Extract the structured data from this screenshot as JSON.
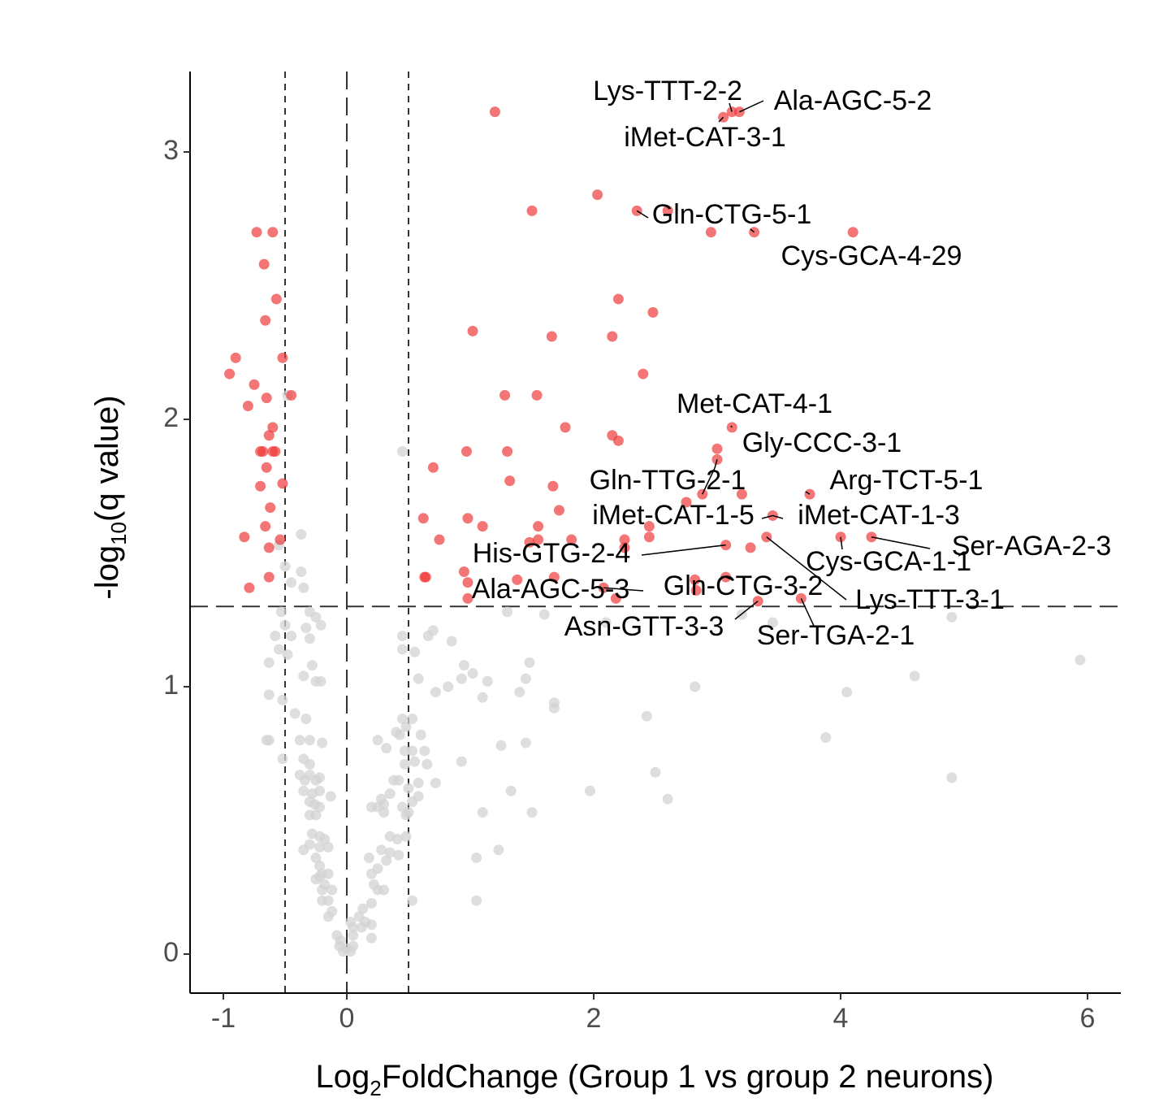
{
  "chart_data": {
    "type": "scatter",
    "title": "",
    "xlabel": {
      "prefix": "Log",
      "sub": "2",
      "suffix": "FoldChange (Group 1 vs group 2 neurons)"
    },
    "ylabel": {
      "prefix": "-log",
      "sub": "10",
      "suffix": "(q value)"
    },
    "xlim": [
      -1.27,
      6.25
    ],
    "ylim": [
      -0.15,
      3.3
    ],
    "x_ticks": [
      {
        "value": -1,
        "label": "-1"
      },
      {
        "value": 0,
        "label": "0"
      },
      {
        "value": 2,
        "label": "2"
      },
      {
        "value": 4,
        "label": "4"
      },
      {
        "value": 6,
        "label": "6"
      }
    ],
    "y_ticks": [
      {
        "value": 0,
        "label": "0"
      },
      {
        "value": 1,
        "label": "1"
      },
      {
        "value": 2,
        "label": "2"
      },
      {
        "value": 3,
        "label": "3"
      }
    ],
    "grid": false,
    "reference_lines": {
      "vertical_dashed": [
        -0.5,
        0.5
      ],
      "vertical_longdash": [
        0
      ],
      "horizontal_longdash": [
        1.3
      ]
    },
    "colors": {
      "significant": "#f03b3b",
      "not_significant": "#d3d3d3",
      "axis": "#000000",
      "refline": "#333333"
    },
    "series": [
      {
        "group": "significant",
        "points": [
          [
            1.2,
            3.15
          ],
          [
            3.05,
            3.13
          ],
          [
            3.12,
            3.15
          ],
          [
            3.18,
            3.15
          ],
          [
            2.03,
            2.84
          ],
          [
            1.5,
            2.78
          ],
          [
            2.35,
            2.78
          ],
          [
            2.6,
            2.78
          ],
          [
            2.95,
            2.7
          ],
          [
            3.3,
            2.7
          ],
          [
            4.1,
            2.7
          ],
          [
            -0.73,
            2.7
          ],
          [
            -0.6,
            2.7
          ],
          [
            -0.67,
            2.58
          ],
          [
            -0.57,
            2.45
          ],
          [
            -0.66,
            2.37
          ],
          [
            2.2,
            2.45
          ],
          [
            2.48,
            2.4
          ],
          [
            1.02,
            2.33
          ],
          [
            1.66,
            2.31
          ],
          [
            2.15,
            2.31
          ],
          [
            -0.9,
            2.23
          ],
          [
            -0.52,
            2.23
          ],
          [
            -0.95,
            2.17
          ],
          [
            -0.75,
            2.13
          ],
          [
            2.4,
            2.17
          ],
          [
            -0.8,
            2.05
          ],
          [
            -0.65,
            2.08
          ],
          [
            1.28,
            2.09
          ],
          [
            1.54,
            2.09
          ],
          [
            -0.45,
            2.09
          ],
          [
            -0.6,
            1.97
          ],
          [
            -0.63,
            1.94
          ],
          [
            1.77,
            1.97
          ],
          [
            2.15,
            1.94
          ],
          [
            2.2,
            1.92
          ],
          [
            3.12,
            1.97
          ],
          [
            3.0,
            1.89
          ],
          [
            -0.7,
            1.88
          ],
          [
            -0.68,
            1.88
          ],
          [
            -0.6,
            1.88
          ],
          [
            -0.58,
            1.88
          ],
          [
            -0.65,
            1.82
          ],
          [
            0.97,
            1.88
          ],
          [
            1.3,
            1.88
          ],
          [
            0.7,
            1.82
          ],
          [
            -0.52,
            1.76
          ],
          [
            -0.7,
            1.75
          ],
          [
            3.0,
            1.85
          ],
          [
            1.32,
            1.77
          ],
          [
            1.67,
            1.75
          ],
          [
            2.88,
            1.72
          ],
          [
            3.2,
            1.72
          ],
          [
            3.75,
            1.72
          ],
          [
            2.75,
            1.69
          ],
          [
            -0.62,
            1.67
          ],
          [
            1.72,
            1.66
          ],
          [
            0.98,
            1.63
          ],
          [
            1.1,
            1.6
          ],
          [
            3.45,
            1.64
          ],
          [
            0.62,
            1.63
          ],
          [
            1.55,
            1.6
          ],
          [
            2.45,
            1.6
          ],
          [
            -0.66,
            1.6
          ],
          [
            -0.83,
            1.56
          ],
          [
            0.75,
            1.55
          ],
          [
            1.55,
            1.55
          ],
          [
            1.48,
            1.54
          ],
          [
            1.82,
            1.55
          ],
          [
            2.25,
            1.55
          ],
          [
            2.45,
            1.56
          ],
          [
            -0.54,
            1.55
          ],
          [
            3.4,
            1.56
          ],
          [
            4.0,
            1.56
          ],
          [
            4.25,
            1.56
          ],
          [
            2.25,
            1.52
          ],
          [
            -0.63,
            1.52
          ],
          [
            3.07,
            1.53
          ],
          [
            3.27,
            1.52
          ],
          [
            0.95,
            1.43
          ],
          [
            0.63,
            1.41
          ],
          [
            0.64,
            1.41
          ],
          [
            1.38,
            1.4
          ],
          [
            1.68,
            1.41
          ],
          [
            -0.63,
            1.41
          ],
          [
            2.82,
            1.4
          ],
          [
            3.07,
            1.41
          ],
          [
            -0.79,
            1.37
          ],
          [
            2.08,
            1.37
          ],
          [
            2.83,
            1.36
          ],
          [
            0.98,
            1.39
          ],
          [
            2.18,
            1.33
          ],
          [
            0.98,
            1.33
          ],
          [
            3.33,
            1.32
          ],
          [
            3.68,
            1.33
          ]
        ]
      },
      {
        "group": "not_significant",
        "points": [
          [
            -0.48,
            2.09
          ],
          [
            0.45,
            1.88
          ],
          [
            -0.37,
            1.57
          ],
          [
            -0.55,
            1.53
          ],
          [
            -0.5,
            1.45
          ],
          [
            -0.37,
            1.43
          ],
          [
            -0.45,
            1.39
          ],
          [
            -0.35,
            1.37
          ],
          [
            -0.53,
            1.28
          ],
          [
            -0.3,
            1.28
          ],
          [
            -0.25,
            1.26
          ],
          [
            -0.5,
            1.23
          ],
          [
            -0.33,
            1.22
          ],
          [
            -0.21,
            1.23
          ],
          [
            -0.45,
            1.19
          ],
          [
            -0.58,
            1.19
          ],
          [
            0.45,
            1.19
          ],
          [
            0.66,
            1.19
          ],
          [
            0.85,
            1.17
          ],
          [
            -0.3,
            1.18
          ],
          [
            -0.55,
            1.14
          ],
          [
            -0.48,
            1.12
          ],
          [
            0.55,
            1.13
          ],
          [
            0.45,
            1.14
          ],
          [
            -0.28,
            1.08
          ],
          [
            -0.63,
            1.09
          ],
          [
            0.95,
            1.08
          ],
          [
            1.48,
            1.09
          ],
          [
            -0.25,
            1.02
          ],
          [
            -0.35,
            1.04
          ],
          [
            -0.21,
            1.02
          ],
          [
            0.58,
            1.03
          ],
          [
            1.02,
            1.05
          ],
          [
            1.45,
            1.03
          ],
          [
            0.93,
            1.03
          ],
          [
            1.14,
            1.02
          ],
          [
            0.72,
            0.98
          ],
          [
            0.82,
            1.0
          ],
          [
            1.4,
            0.98
          ],
          [
            1.1,
            0.96
          ],
          [
            1.68,
            0.94
          ],
          [
            1.68,
            0.92
          ],
          [
            2.82,
            1.0
          ],
          [
            4.05,
            0.98
          ],
          [
            4.6,
            1.04
          ],
          [
            5.94,
            1.1
          ],
          [
            -0.63,
            0.97
          ],
          [
            -0.52,
            0.95
          ],
          [
            -0.42,
            0.9
          ],
          [
            -0.33,
            0.88
          ],
          [
            0.45,
            0.88
          ],
          [
            0.53,
            0.88
          ],
          [
            0.48,
            0.85
          ],
          [
            0.43,
            0.82
          ],
          [
            0.6,
            0.82
          ],
          [
            0.4,
            0.83
          ],
          [
            2.43,
            0.89
          ],
          [
            -0.63,
            0.8
          ],
          [
            -0.65,
            0.8
          ],
          [
            -0.38,
            0.8
          ],
          [
            -0.3,
            0.8
          ],
          [
            -0.2,
            0.79
          ],
          [
            0.25,
            0.8
          ],
          [
            0.32,
            0.77
          ],
          [
            0.53,
            0.76
          ],
          [
            0.47,
            0.76
          ],
          [
            0.63,
            0.76
          ],
          [
            1.25,
            0.78
          ],
          [
            1.45,
            0.79
          ],
          [
            3.88,
            0.81
          ],
          [
            -0.35,
            0.73
          ],
          [
            -0.3,
            0.71
          ],
          [
            -0.52,
            0.73
          ],
          [
            0.47,
            0.71
          ],
          [
            0.55,
            0.72
          ],
          [
            0.65,
            0.71
          ],
          [
            0.93,
            0.72
          ],
          [
            -0.38,
            0.67
          ],
          [
            -0.3,
            0.67
          ],
          [
            -0.25,
            0.65
          ],
          [
            -0.22,
            0.66
          ],
          [
            -0.34,
            0.65
          ],
          [
            0.38,
            0.65
          ],
          [
            0.42,
            0.65
          ],
          [
            0.58,
            0.64
          ],
          [
            0.72,
            0.64
          ],
          [
            2.5,
            0.68
          ],
          [
            4.9,
            0.66
          ],
          [
            -0.35,
            0.61
          ],
          [
            -0.28,
            0.6
          ],
          [
            -0.22,
            0.61
          ],
          [
            -0.13,
            0.59
          ],
          [
            0.28,
            0.58
          ],
          [
            0.35,
            0.6
          ],
          [
            0.5,
            0.62
          ],
          [
            0.58,
            0.59
          ],
          [
            1.33,
            0.61
          ],
          [
            1.97,
            0.61
          ],
          [
            2.6,
            0.58
          ],
          [
            -0.3,
            0.57
          ],
          [
            -0.26,
            0.56
          ],
          [
            -0.22,
            0.55
          ],
          [
            0.2,
            0.55
          ],
          [
            0.25,
            0.55
          ],
          [
            0.3,
            0.56
          ],
          [
            0.45,
            0.55
          ],
          [
            0.53,
            0.57
          ],
          [
            1.1,
            0.53
          ],
          [
            1.5,
            0.53
          ],
          [
            -0.3,
            0.52
          ],
          [
            -0.25,
            0.52
          ],
          [
            0.3,
            0.53
          ],
          [
            0.48,
            0.52
          ],
          [
            0.5,
            0.53
          ],
          [
            -0.28,
            0.45
          ],
          [
            -0.22,
            0.44
          ],
          [
            -0.18,
            0.43
          ],
          [
            0.35,
            0.44
          ],
          [
            0.41,
            0.43
          ],
          [
            0.48,
            0.44
          ],
          [
            -0.35,
            0.39
          ],
          [
            -0.3,
            0.41
          ],
          [
            -0.22,
            0.4
          ],
          [
            -0.15,
            0.4
          ],
          [
            0.28,
            0.39
          ],
          [
            0.35,
            0.38
          ],
          [
            0.42,
            0.37
          ],
          [
            1.23,
            0.39
          ],
          [
            1.05,
            0.36
          ],
          [
            -0.25,
            0.36
          ],
          [
            -0.22,
            0.33
          ],
          [
            -0.2,
            0.3
          ],
          [
            0.18,
            0.36
          ],
          [
            0.25,
            0.32
          ],
          [
            0.32,
            0.35
          ],
          [
            -0.22,
            0.29
          ],
          [
            -0.25,
            0.28
          ],
          [
            -0.15,
            0.3
          ],
          [
            0.2,
            0.3
          ],
          [
            0.22,
            0.26
          ],
          [
            -0.2,
            0.24
          ],
          [
            -0.18,
            0.26
          ],
          [
            -0.12,
            0.24
          ],
          [
            0.25,
            0.24
          ],
          [
            0.3,
            0.24
          ],
          [
            -0.2,
            0.2
          ],
          [
            -0.15,
            0.2
          ],
          [
            0.2,
            0.19
          ],
          [
            0.13,
            0.17
          ],
          [
            1.05,
            0.2
          ],
          [
            0.53,
            0.2
          ],
          [
            -0.12,
            0.16
          ],
          [
            -0.15,
            0.14
          ],
          [
            0.1,
            0.14
          ],
          [
            0.15,
            0.12
          ],
          [
            0.03,
            0.12
          ],
          [
            0.05,
            0.1
          ],
          [
            0.12,
            0.1
          ],
          [
            0.2,
            0.11
          ],
          [
            -0.08,
            0.07
          ],
          [
            -0.05,
            0.05
          ],
          [
            0.05,
            0.07
          ],
          [
            0.2,
            0.06
          ],
          [
            -0.06,
            0.03
          ],
          [
            0.0,
            0.02
          ],
          [
            0.03,
            0.01
          ],
          [
            -0.03,
            0.01
          ],
          [
            0.05,
            0.03
          ],
          [
            1.6,
            1.27
          ],
          [
            2.1,
            1.24
          ],
          [
            3.2,
            1.27
          ],
          [
            3.45,
            1.24
          ],
          [
            4.9,
            1.26
          ],
          [
            0.7,
            1.21
          ],
          [
            1.3,
            1.28
          ]
        ]
      }
    ],
    "annotations": [
      {
        "label": "Lys-TTT-2-2",
        "point": [
          3.12,
          3.15
        ]
      },
      {
        "label": "Ala-AGC-5-2",
        "point": [
          3.18,
          3.15
        ]
      },
      {
        "label": "iMet-CAT-3-1",
        "point": [
          3.05,
          3.13
        ]
      },
      {
        "label": "Gln-CTG-5-1",
        "point": [
          2.35,
          2.78
        ]
      },
      {
        "label": "Cys-GCA-4-29",
        "point": [
          3.3,
          2.7
        ]
      },
      {
        "label": "Met-CAT-4-1",
        "point": [
          3.12,
          1.97
        ]
      },
      {
        "label": "Gly-CCC-3-1",
        "point": [
          3.0,
          1.85
        ]
      },
      {
        "label": "Gln-TTG-2-1",
        "point": [
          2.88,
          1.72
        ]
      },
      {
        "label": "Arg-TCT-5-1",
        "point": [
          3.75,
          1.72
        ]
      },
      {
        "label": "iMet-CAT-1-5",
        "point": [
          3.45,
          1.64
        ]
      },
      {
        "label": "iMet-CAT-1-3",
        "point": [
          3.45,
          1.64
        ]
      },
      {
        "label": "Ser-AGA-2-3",
        "point": [
          4.25,
          1.56
        ]
      },
      {
        "label": "His-GTG-2-4",
        "point": [
          3.07,
          1.53
        ]
      },
      {
        "label": "Cys-GCA-1-1",
        "point": [
          4.0,
          1.56
        ]
      },
      {
        "label": "Ala-AGC-5-3",
        "point": [
          2.08,
          1.37
        ]
      },
      {
        "label": "Gln-CTG-3-2",
        "point": [
          3.07,
          1.41
        ]
      },
      {
        "label": "Lys-TTT-3-1",
        "point": [
          3.4,
          1.56
        ]
      },
      {
        "label": "Asn-GTT-3-3",
        "point": [
          3.33,
          1.32
        ]
      },
      {
        "label": "Ser-TGA-2-1",
        "point": [
          3.68,
          1.33
        ]
      }
    ]
  }
}
